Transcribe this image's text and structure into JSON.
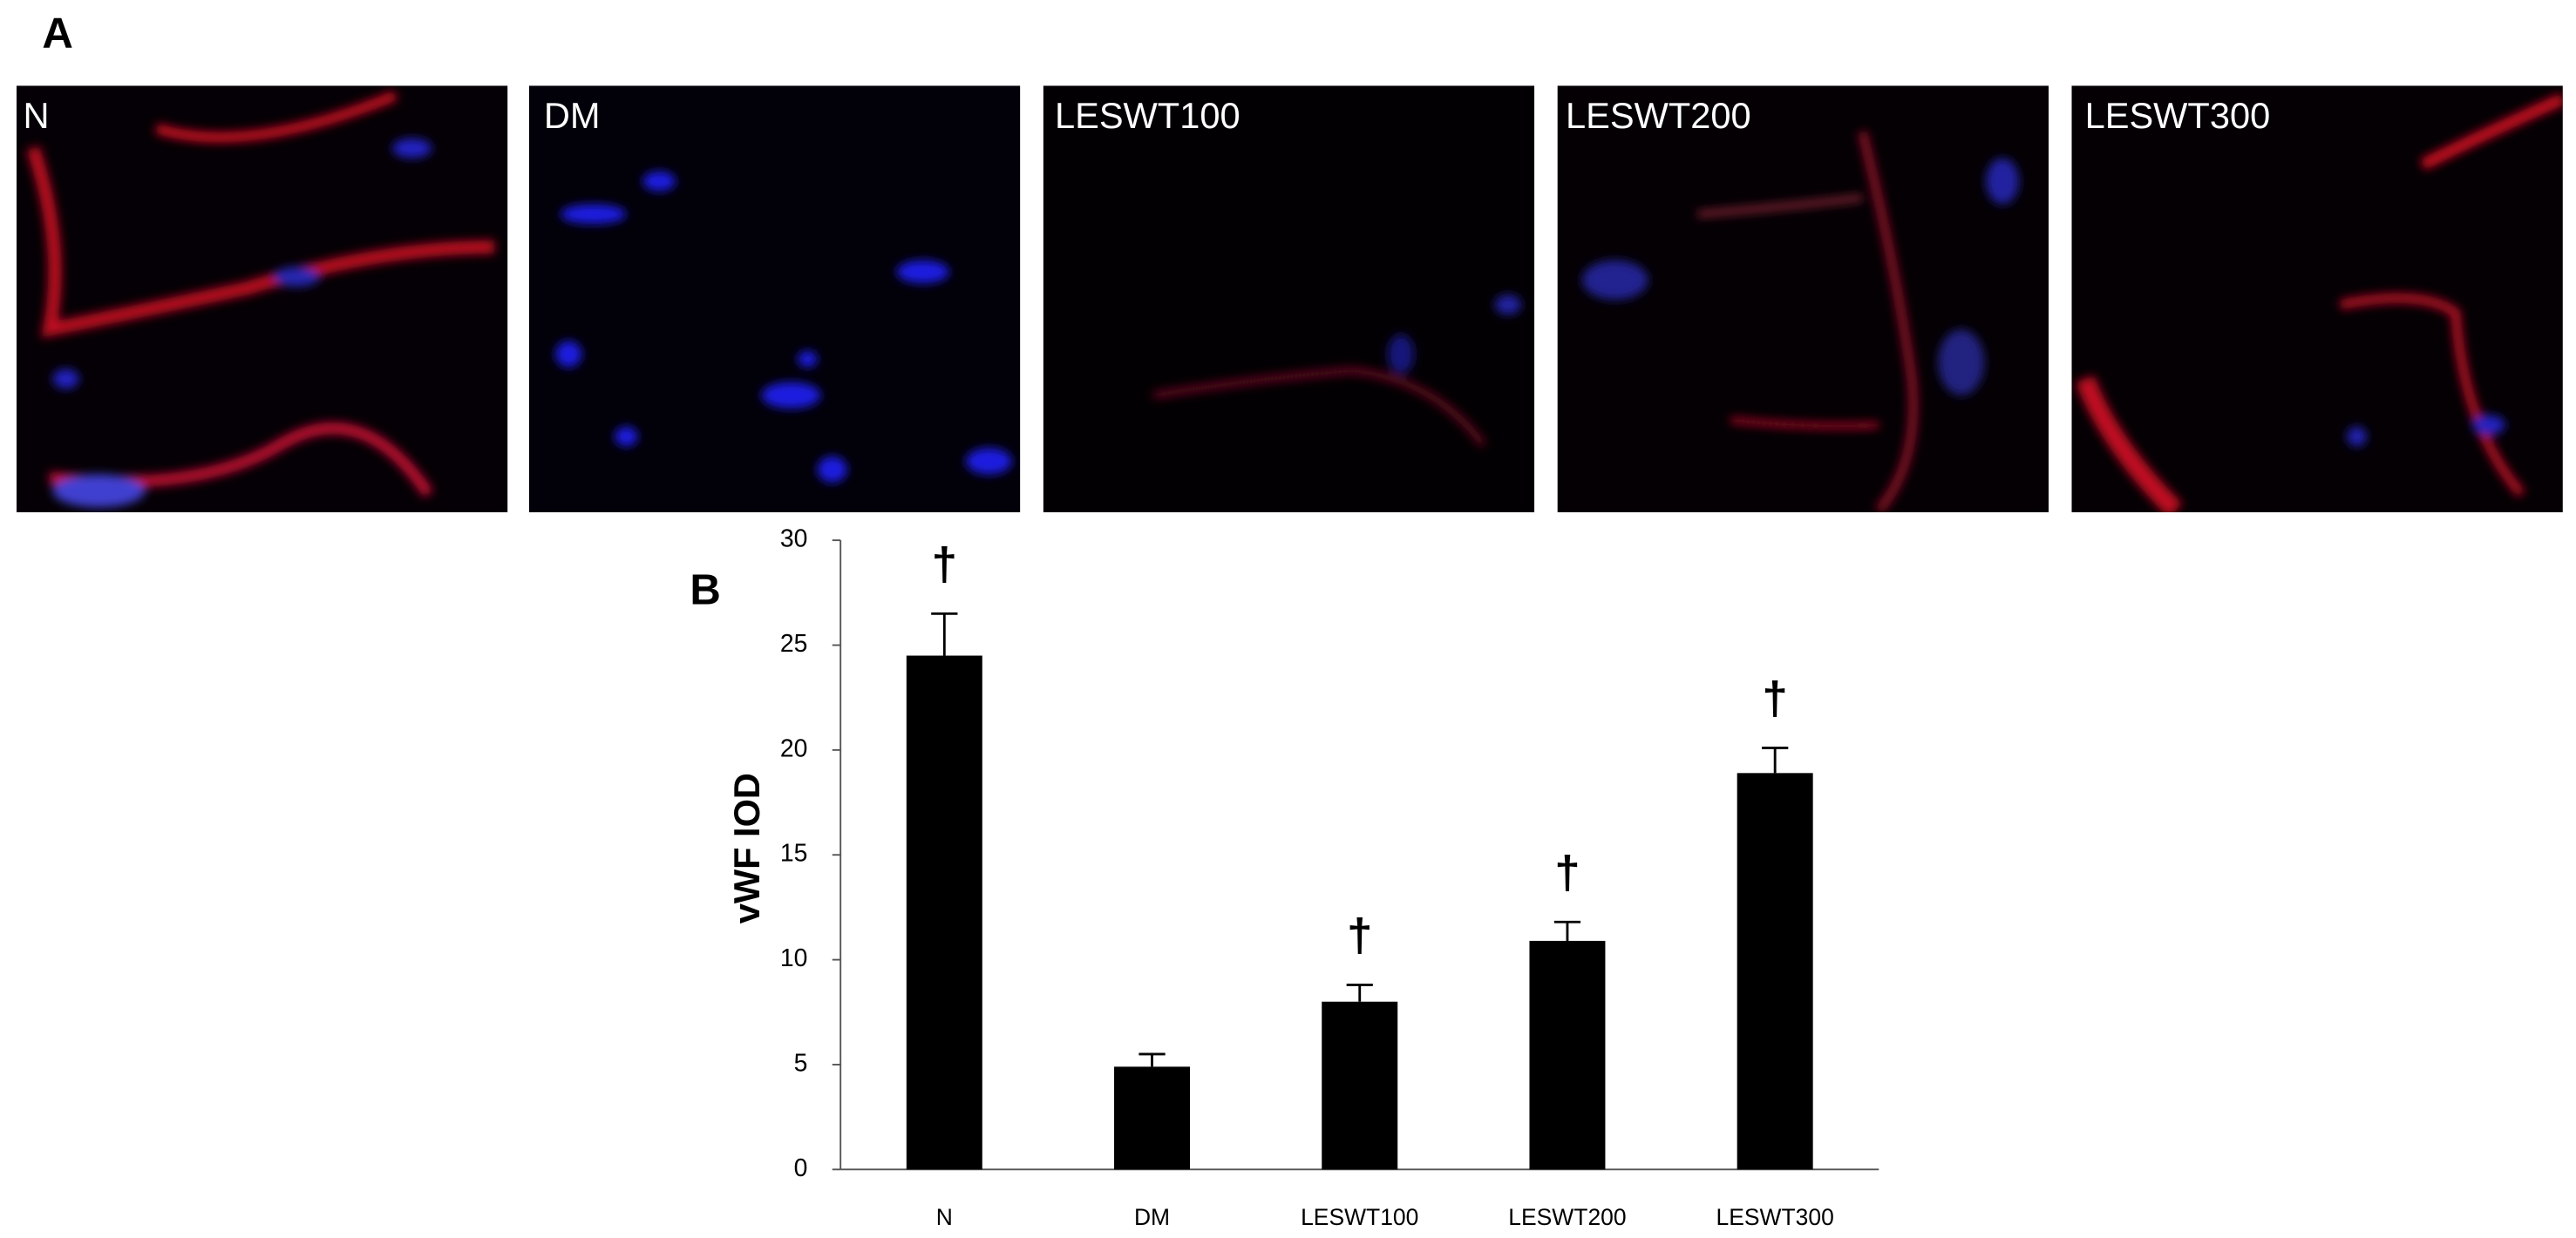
{
  "panel_a": {
    "label": "A",
    "images": [
      "N",
      "DM",
      "LESWT100",
      "LESWT200",
      "LESWT300"
    ]
  },
  "chart_data": {
    "type": "bar",
    "panel_label": "B",
    "ylabel": "vWF IOD",
    "categories": [
      "N",
      "DM",
      "LESWT100",
      "LESWT200",
      "LESWT300"
    ],
    "values": [
      24.5,
      4.9,
      8.0,
      10.9,
      18.9
    ],
    "errors": [
      2.0,
      0.6,
      0.8,
      0.9,
      1.2
    ],
    "annotations": [
      "†",
      null,
      "†",
      "†",
      "†"
    ],
    "color": "#000000",
    "ylim": [
      0,
      30
    ],
    "yticks": [
      0,
      5,
      10,
      15,
      20,
      25,
      30
    ],
    "grid": false
  }
}
